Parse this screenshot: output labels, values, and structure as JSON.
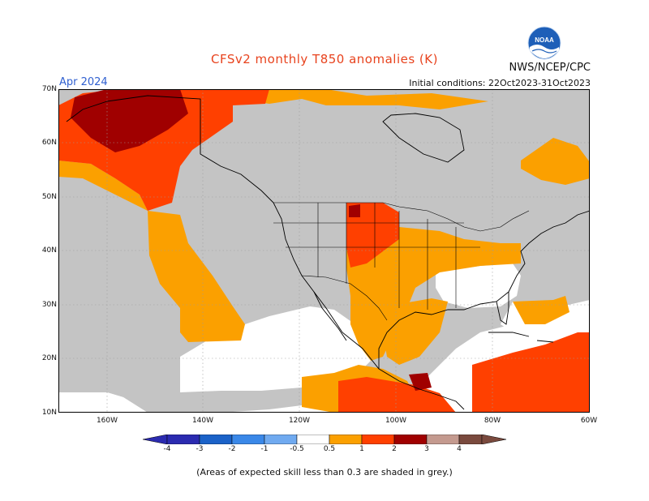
{
  "title": "CFSv2 monthly T850 anomalies (K)",
  "target_month": "Apr 2024",
  "initial_conditions": "Initial conditions: 22Oct2023-31Oct2023",
  "agency": "NWS/NCEP/CPC",
  "logo_text": "NOAA",
  "footnote": "(Areas of expected skill less than 0.3 are shaded in grey.)",
  "colors": {
    "grey_low_skill": "#c4c4c4",
    "land_neutral": "#ffffff",
    "anom_0_5_1": "#fba000",
    "anom_1_2": "#ff4000",
    "anom_2_3": "#a00000",
    "anom_3_4": "#c49a8f",
    "anom_neg_0_5_1": "#70aaf0",
    "anom_neg_1_2": "#3a88e8",
    "anom_neg_2_3": "#1b62c8",
    "anom_neg_3_4": "#2b2bb0",
    "borders": "#000000"
  },
  "lat_labels": [
    "70N",
    "60N",
    "50N",
    "40N",
    "30N",
    "20N",
    "10N"
  ],
  "lon_labels": [
    "160W",
    "140W",
    "120W",
    "100W",
    "80W",
    "60W"
  ],
  "colorbar": {
    "labels": [
      "-4",
      "-3",
      "-2",
      "-1",
      "-0.5",
      "0.5",
      "1",
      "2",
      "3",
      "4"
    ]
  }
}
